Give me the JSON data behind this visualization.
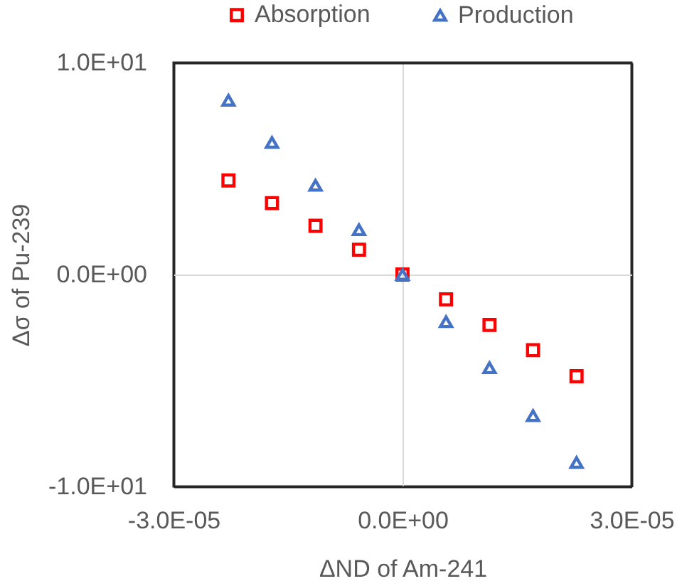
{
  "chart_data": {
    "type": "scatter",
    "xlabel": "ΔND of Am-241",
    "ylabel": "Δσ of Pu-239",
    "x": [
      -2.28e-05,
      -1.71e-05,
      -1.14e-05,
      -5.7e-06,
      0,
      5.7e-06,
      1.14e-05,
      1.71e-05,
      2.28e-05
    ],
    "series": [
      {
        "name": "Absorption",
        "color": "#ff0000",
        "marker": "square",
        "values": [
          4.44,
          3.37,
          2.3,
          1.17,
          0,
          -1.17,
          -2.38,
          -3.57,
          -4.8
        ]
      },
      {
        "name": "Production",
        "color": "#4472c4",
        "marker": "triangle",
        "values": [
          8.22,
          6.23,
          4.21,
          2.11,
          0,
          -2.23,
          -4.4,
          -6.66,
          -8.87
        ]
      }
    ],
    "xlim": [
      -3e-05,
      3e-05
    ],
    "ylim": [
      -10,
      10
    ],
    "xticks": [
      {
        "value": -3e-05,
        "label": "-3.0E-05"
      },
      {
        "value": 0,
        "label": "0.0E+00"
      },
      {
        "value": 3e-05,
        "label": "3.0E-05"
      }
    ],
    "yticks": [
      {
        "value": -10,
        "label": "-1.0E+01"
      },
      {
        "value": 0,
        "label": "0.0E+00"
      },
      {
        "value": 10,
        "label": "1.0E+01"
      }
    ],
    "grid": true,
    "legend": "top"
  }
}
